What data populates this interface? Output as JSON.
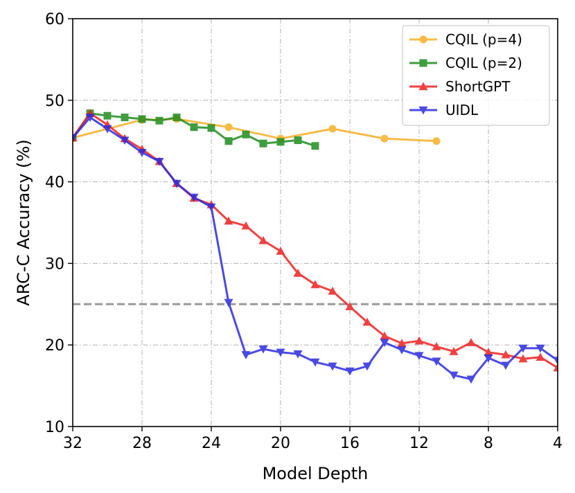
{
  "chart_data": {
    "type": "line",
    "xlabel": "Model Depth",
    "ylabel": "ARC-C Accuracy (%)",
    "xlim": [
      32,
      4
    ],
    "ylim": [
      10,
      60
    ],
    "xticks": [
      32,
      28,
      24,
      20,
      16,
      12,
      8,
      4
    ],
    "yticks": [
      10,
      20,
      30,
      40,
      50,
      60
    ],
    "grid": true,
    "legend_position": "top-right",
    "reference_line": {
      "y": 25,
      "style": "dashed",
      "color": "#999999"
    },
    "series": [
      {
        "name": "CQIL (p=4)",
        "color": "#f5b026",
        "marker": "circle",
        "x": [
          32,
          28,
          26,
          23,
          20,
          17,
          14,
          11
        ],
        "y": [
          45.4,
          47.6,
          47.7,
          46.7,
          45.3,
          46.5,
          45.3,
          45.0
        ]
      },
      {
        "name": "CQIL (p=2)",
        "color": "#1e8c1e",
        "marker": "square",
        "x": [
          32,
          31,
          30,
          29,
          28,
          27,
          26,
          25,
          24,
          23,
          22,
          21,
          20,
          19,
          18
        ],
        "y": [
          45.4,
          48.4,
          48.1,
          47.9,
          47.7,
          47.5,
          47.9,
          46.7,
          46.6,
          45.0,
          45.8,
          44.7,
          44.9,
          45.1,
          44.4
        ]
      },
      {
        "name": "ShortGPT",
        "color": "#ee2020",
        "marker": "triangle-up",
        "x": [
          32,
          31,
          30,
          29,
          28,
          27,
          26,
          25,
          24,
          23,
          22,
          21,
          20,
          19,
          18,
          17,
          16,
          15,
          14,
          13,
          12,
          11,
          10,
          9,
          8,
          7,
          6,
          5,
          4
        ],
        "y": [
          45.4,
          48.4,
          47.0,
          45.3,
          44.0,
          42.5,
          39.8,
          38.0,
          37.2,
          35.2,
          34.6,
          32.8,
          31.5,
          28.8,
          27.4,
          26.6,
          24.7,
          22.8,
          21.1,
          20.2,
          20.5,
          19.8,
          19.2,
          20.3,
          19.1,
          18.8,
          18.3,
          18.5,
          17.2
        ]
      },
      {
        "name": "UIDL",
        "color": "#2a2ae0",
        "marker": "triangle-down",
        "x": [
          32,
          31,
          30,
          29,
          28,
          27,
          26,
          25,
          24,
          23,
          22,
          21,
          20,
          19,
          18,
          17,
          16,
          15,
          14,
          13,
          12,
          11,
          10,
          9,
          8,
          7,
          6,
          5,
          4
        ],
        "y": [
          45.4,
          47.9,
          46.5,
          45.1,
          43.6,
          42.5,
          39.8,
          38.1,
          36.9,
          25.2,
          18.8,
          19.5,
          19.1,
          18.9,
          17.9,
          17.4,
          16.8,
          17.4,
          20.3,
          19.4,
          18.7,
          18.0,
          16.3,
          15.8,
          18.4,
          17.5,
          19.6,
          19.6,
          18.1
        ]
      }
    ]
  }
}
